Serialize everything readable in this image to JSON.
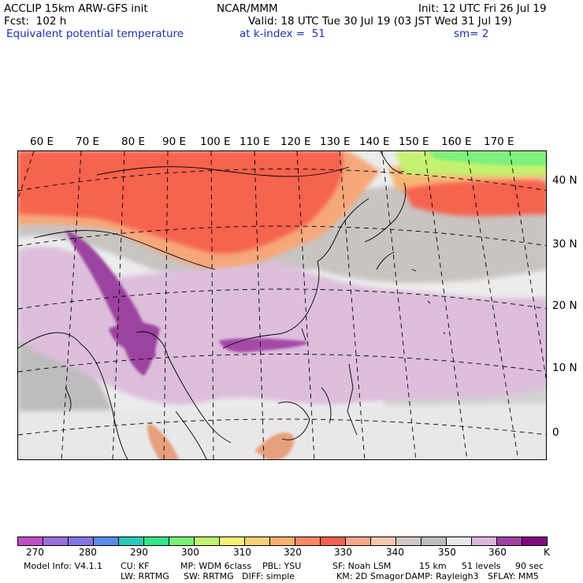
{
  "header": {
    "line1_left": "ACCLIP 15km ARW-GFS init",
    "line1_center": "NCAR/MMM",
    "line1_right": "Init: 12 UTC Fri 26 Jul 19",
    "line2_left": "Fcst:  102 h",
    "line2_right": "Valid: 18 UTC Tue 30 Jul 19 (03 JST Wed 31 Jul 19)",
    "line3_left": "Equivalent potential temperature",
    "line3_center": "at k-index =  51",
    "line3_right": "sm= 2"
  },
  "map": {
    "lon_labels": [
      "60 E",
      "70 E",
      "80 E",
      "90 E",
      "100 E",
      "110 E",
      "120 E",
      "130 E",
      "140 E",
      "150 E",
      "160 E",
      "170 E"
    ],
    "lat_labels": [
      "40 N",
      "30 N",
      "20 N",
      "10 N",
      "0"
    ]
  },
  "colorbar": {
    "colors": [
      "#c050c8",
      "#9a6fd8",
      "#8277e0",
      "#5c8ce8",
      "#2ccab8",
      "#34e48a",
      "#78f078",
      "#c2f470",
      "#f4f076",
      "#f8d078",
      "#f8b070",
      "#f88866",
      "#f46050",
      "#f8a88c",
      "#f4c8b0",
      "#cfc8c4",
      "#bebebe",
      "#e8e8e8",
      "#dcb8dc",
      "#a040a4",
      "#800880"
    ],
    "labels": [
      "270",
      "280",
      "290",
      "300",
      "310",
      "320",
      "330",
      "340",
      "350",
      "360",
      "K"
    ]
  },
  "footer": {
    "line1": [
      "Model Info: V4.1.1",
      "CU: KF",
      "MP: WDM 6class",
      "PBL: YSU",
      "SF: Noah LSM",
      "15 km",
      "51 levels",
      "90 sec"
    ],
    "line2": [
      "LW: RRTMG",
      "SW: RRTMG",
      "DIFF: simple",
      "KM: 2D Smagor",
      "DAMP: Rayleigh3",
      "SFLAY: MM5"
    ]
  }
}
